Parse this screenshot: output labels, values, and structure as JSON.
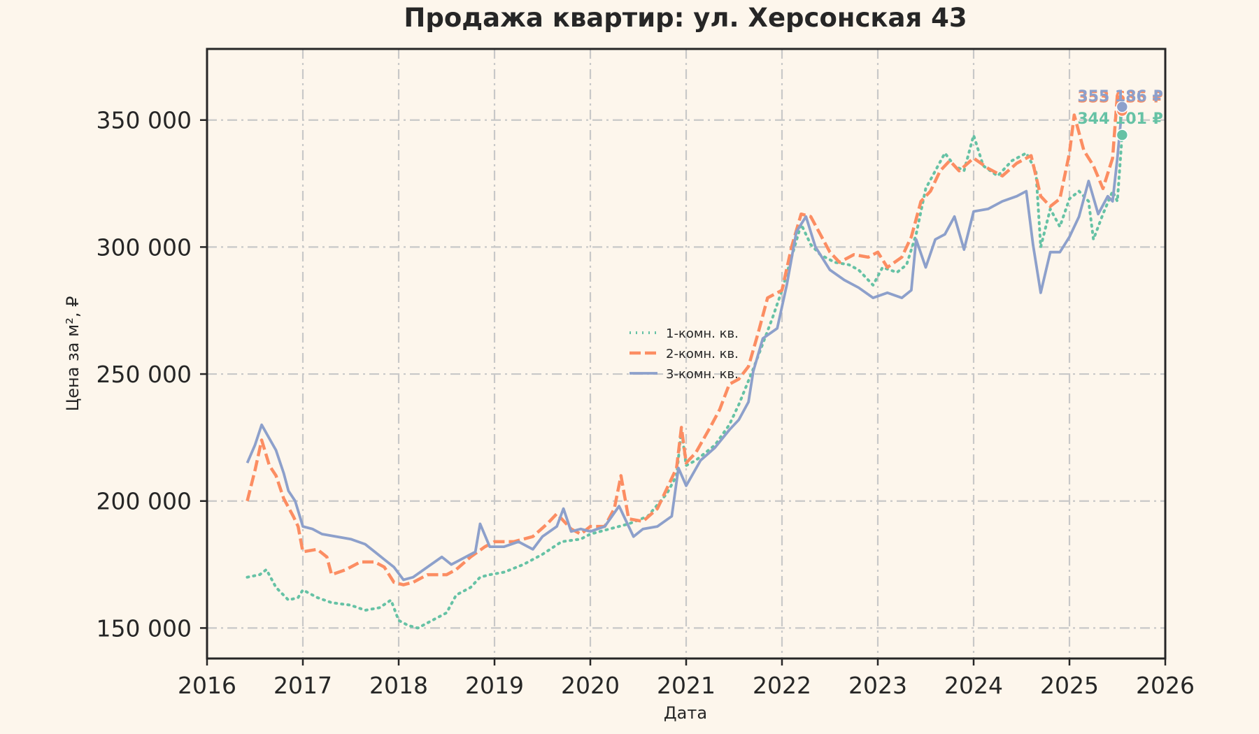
{
  "chart_data": {
    "type": "line",
    "title": "Продажа квартир: ул. Херсонская 43",
    "xlabel": "Дата",
    "ylabel": "Цена за м², ₽",
    "xlim": [
      2016,
      2026
    ],
    "ylim": [
      138000,
      378000
    ],
    "xticks": [
      2016,
      2017,
      2018,
      2019,
      2020,
      2021,
      2022,
      2023,
      2024,
      2025,
      2026
    ],
    "xtick_labels": [
      "2016",
      "2017",
      "2018",
      "2019",
      "2020",
      "2021",
      "2022",
      "2023",
      "2024",
      "2025",
      "2026"
    ],
    "yticks": [
      150000,
      200000,
      250000,
      300000,
      350000
    ],
    "ytick_labels": [
      "150 000",
      "200 000",
      "250 000",
      "300 000",
      "350 000"
    ],
    "grid": true,
    "legend_position": "center",
    "series": [
      {
        "name": "1-комн. кв.",
        "color": "#66c2a5",
        "style": "dotted",
        "end_label": "344 101 ₽",
        "end_value": 344101,
        "points": [
          [
            2016.42,
            170000
          ],
          [
            2016.55,
            171000
          ],
          [
            2016.62,
            173000
          ],
          [
            2016.72,
            166000
          ],
          [
            2016.85,
            161000
          ],
          [
            2016.95,
            162000
          ],
          [
            2017.0,
            165000
          ],
          [
            2017.15,
            162000
          ],
          [
            2017.3,
            160000
          ],
          [
            2017.5,
            159000
          ],
          [
            2017.65,
            157000
          ],
          [
            2017.8,
            158000
          ],
          [
            2017.92,
            161000
          ],
          [
            2018.0,
            153000
          ],
          [
            2018.1,
            151000
          ],
          [
            2018.2,
            150000
          ],
          [
            2018.35,
            153000
          ],
          [
            2018.5,
            156000
          ],
          [
            2018.6,
            163000
          ],
          [
            2018.75,
            166000
          ],
          [
            2018.85,
            170000
          ],
          [
            2018.95,
            171000
          ],
          [
            2019.1,
            172000
          ],
          [
            2019.3,
            175000
          ],
          [
            2019.5,
            179000
          ],
          [
            2019.7,
            184000
          ],
          [
            2019.9,
            185000
          ],
          [
            2020.0,
            187000
          ],
          [
            2020.2,
            189000
          ],
          [
            2020.4,
            191000
          ],
          [
            2020.6,
            194000
          ],
          [
            2020.8,
            203000
          ],
          [
            2020.9,
            210000
          ],
          [
            2020.95,
            228000
          ],
          [
            2021.0,
            214000
          ],
          [
            2021.1,
            216000
          ],
          [
            2021.3,
            222000
          ],
          [
            2021.45,
            230000
          ],
          [
            2021.55,
            238000
          ],
          [
            2021.7,
            252000
          ],
          [
            2021.8,
            262000
          ],
          [
            2021.9,
            272000
          ],
          [
            2022.0,
            283000
          ],
          [
            2022.1,
            296000
          ],
          [
            2022.2,
            309000
          ],
          [
            2022.3,
            301000
          ],
          [
            2022.4,
            297000
          ],
          [
            2022.55,
            294000
          ],
          [
            2022.7,
            293000
          ],
          [
            2022.8,
            291000
          ],
          [
            2022.95,
            285000
          ],
          [
            2023.05,
            292000
          ],
          [
            2023.2,
            290000
          ],
          [
            2023.3,
            293000
          ],
          [
            2023.4,
            305000
          ],
          [
            2023.5,
            323000
          ],
          [
            2023.6,
            330000
          ],
          [
            2023.7,
            337000
          ],
          [
            2023.8,
            332000
          ],
          [
            2023.9,
            330000
          ],
          [
            2024.0,
            344000
          ],
          [
            2024.1,
            332000
          ],
          [
            2024.25,
            328000
          ],
          [
            2024.4,
            334000
          ],
          [
            2024.55,
            337000
          ],
          [
            2024.65,
            330000
          ],
          [
            2024.7,
            300000
          ],
          [
            2024.8,
            315000
          ],
          [
            2024.9,
            308000
          ],
          [
            2025.0,
            319000
          ],
          [
            2025.1,
            322000
          ],
          [
            2025.2,
            318000
          ],
          [
            2025.25,
            303000
          ],
          [
            2025.35,
            313000
          ],
          [
            2025.45,
            322000
          ],
          [
            2025.5,
            318000
          ],
          [
            2025.55,
            344101
          ]
        ]
      },
      {
        "name": "2-комн. кв.",
        "color": "#fc8d62",
        "style": "dashed",
        "end_label": "353 635 ₽",
        "end_value": 353635,
        "points": [
          [
            2016.42,
            200000
          ],
          [
            2016.5,
            212000
          ],
          [
            2016.57,
            224000
          ],
          [
            2016.65,
            214000
          ],
          [
            2016.72,
            210000
          ],
          [
            2016.8,
            201000
          ],
          [
            2016.9,
            194000
          ],
          [
            2016.95,
            190000
          ],
          [
            2017.0,
            180000
          ],
          [
            2017.15,
            181000
          ],
          [
            2017.25,
            178000
          ],
          [
            2017.3,
            171000
          ],
          [
            2017.45,
            173000
          ],
          [
            2017.6,
            176000
          ],
          [
            2017.75,
            176000
          ],
          [
            2017.85,
            174000
          ],
          [
            2017.95,
            168000
          ],
          [
            2018.05,
            167000
          ],
          [
            2018.15,
            168000
          ],
          [
            2018.3,
            171000
          ],
          [
            2018.5,
            171000
          ],
          [
            2018.6,
            173000
          ],
          [
            2018.75,
            178000
          ],
          [
            2018.9,
            182000
          ],
          [
            2019.0,
            184000
          ],
          [
            2019.2,
            184000
          ],
          [
            2019.4,
            186000
          ],
          [
            2019.55,
            191000
          ],
          [
            2019.65,
            195000
          ],
          [
            2019.8,
            189000
          ],
          [
            2019.9,
            187000
          ],
          [
            2020.0,
            190000
          ],
          [
            2020.15,
            190000
          ],
          [
            2020.25,
            197000
          ],
          [
            2020.32,
            210000
          ],
          [
            2020.4,
            193000
          ],
          [
            2020.55,
            192000
          ],
          [
            2020.7,
            197000
          ],
          [
            2020.8,
            205000
          ],
          [
            2020.9,
            213000
          ],
          [
            2020.95,
            229000
          ],
          [
            2021.0,
            215000
          ],
          [
            2021.1,
            219000
          ],
          [
            2021.25,
            229000
          ],
          [
            2021.35,
            236000
          ],
          [
            2021.45,
            246000
          ],
          [
            2021.55,
            248000
          ],
          [
            2021.65,
            253000
          ],
          [
            2021.75,
            266000
          ],
          [
            2021.85,
            280000
          ],
          [
            2021.95,
            282000
          ],
          [
            2022.0,
            283000
          ],
          [
            2022.1,
            300000
          ],
          [
            2022.2,
            313000
          ],
          [
            2022.3,
            312000
          ],
          [
            2022.4,
            305000
          ],
          [
            2022.5,
            298000
          ],
          [
            2022.6,
            294000
          ],
          [
            2022.75,
            297000
          ],
          [
            2022.9,
            296000
          ],
          [
            2023.0,
            298000
          ],
          [
            2023.1,
            292000
          ],
          [
            2023.25,
            296000
          ],
          [
            2023.35,
            304000
          ],
          [
            2023.45,
            318000
          ],
          [
            2023.55,
            322000
          ],
          [
            2023.65,
            330000
          ],
          [
            2023.75,
            334000
          ],
          [
            2023.85,
            330000
          ],
          [
            2024.0,
            335000
          ],
          [
            2024.15,
            331000
          ],
          [
            2024.3,
            328000
          ],
          [
            2024.45,
            333000
          ],
          [
            2024.6,
            336000
          ],
          [
            2024.7,
            320000
          ],
          [
            2024.8,
            316000
          ],
          [
            2024.9,
            319000
          ],
          [
            2025.0,
            337000
          ],
          [
            2025.05,
            352000
          ],
          [
            2025.15,
            338000
          ],
          [
            2025.25,
            332000
          ],
          [
            2025.35,
            323000
          ],
          [
            2025.45,
            335000
          ],
          [
            2025.5,
            360000
          ],
          [
            2025.55,
            353635
          ]
        ]
      },
      {
        "name": "3-комн. кв.",
        "color": "#8da0cb",
        "style": "solid",
        "end_label": "355 186 ₽",
        "end_value": 355186,
        "points": [
          [
            2016.42,
            215000
          ],
          [
            2016.5,
            222000
          ],
          [
            2016.57,
            230000
          ],
          [
            2016.63,
            226000
          ],
          [
            2016.72,
            220000
          ],
          [
            2016.8,
            211000
          ],
          [
            2016.85,
            204000
          ],
          [
            2016.92,
            200000
          ],
          [
            2017.0,
            190000
          ],
          [
            2017.1,
            189000
          ],
          [
            2017.2,
            187000
          ],
          [
            2017.35,
            186000
          ],
          [
            2017.5,
            185000
          ],
          [
            2017.65,
            183000
          ],
          [
            2017.75,
            180000
          ],
          [
            2017.85,
            177000
          ],
          [
            2017.95,
            174000
          ],
          [
            2018.05,
            169000
          ],
          [
            2018.15,
            170000
          ],
          [
            2018.3,
            174000
          ],
          [
            2018.45,
            178000
          ],
          [
            2018.55,
            175000
          ],
          [
            2018.7,
            178000
          ],
          [
            2018.8,
            180000
          ],
          [
            2018.85,
            191000
          ],
          [
            2018.95,
            182000
          ],
          [
            2019.1,
            182000
          ],
          [
            2019.25,
            184000
          ],
          [
            2019.4,
            181000
          ],
          [
            2019.5,
            186000
          ],
          [
            2019.65,
            190000
          ],
          [
            2019.72,
            197000
          ],
          [
            2019.8,
            188000
          ],
          [
            2019.9,
            189000
          ],
          [
            2020.0,
            188000
          ],
          [
            2020.15,
            190000
          ],
          [
            2020.3,
            198000
          ],
          [
            2020.45,
            186000
          ],
          [
            2020.55,
            189000
          ],
          [
            2020.7,
            190000
          ],
          [
            2020.85,
            194000
          ],
          [
            2020.92,
            213000
          ],
          [
            2021.0,
            206000
          ],
          [
            2021.15,
            216000
          ],
          [
            2021.3,
            221000
          ],
          [
            2021.45,
            228000
          ],
          [
            2021.55,
            232000
          ],
          [
            2021.65,
            239000
          ],
          [
            2021.7,
            251000
          ],
          [
            2021.8,
            264000
          ],
          [
            2021.95,
            268000
          ],
          [
            2022.05,
            285000
          ],
          [
            2022.15,
            306000
          ],
          [
            2022.25,
            312000
          ],
          [
            2022.35,
            300000
          ],
          [
            2022.5,
            291000
          ],
          [
            2022.65,
            287000
          ],
          [
            2022.8,
            284000
          ],
          [
            2022.95,
            280000
          ],
          [
            2023.1,
            282000
          ],
          [
            2023.25,
            280000
          ],
          [
            2023.35,
            283000
          ],
          [
            2023.4,
            303000
          ],
          [
            2023.5,
            292000
          ],
          [
            2023.6,
            303000
          ],
          [
            2023.7,
            305000
          ],
          [
            2023.8,
            312000
          ],
          [
            2023.9,
            299000
          ],
          [
            2024.0,
            314000
          ],
          [
            2024.15,
            315000
          ],
          [
            2024.3,
            318000
          ],
          [
            2024.45,
            320000
          ],
          [
            2024.55,
            322000
          ],
          [
            2024.62,
            301000
          ],
          [
            2024.7,
            282000
          ],
          [
            2024.8,
            298000
          ],
          [
            2024.9,
            298000
          ],
          [
            2025.0,
            304000
          ],
          [
            2025.1,
            312000
          ],
          [
            2025.2,
            326000
          ],
          [
            2025.3,
            313000
          ],
          [
            2025.4,
            320000
          ],
          [
            2025.45,
            318000
          ],
          [
            2025.5,
            335000
          ],
          [
            2025.55,
            355186
          ]
        ]
      }
    ]
  }
}
